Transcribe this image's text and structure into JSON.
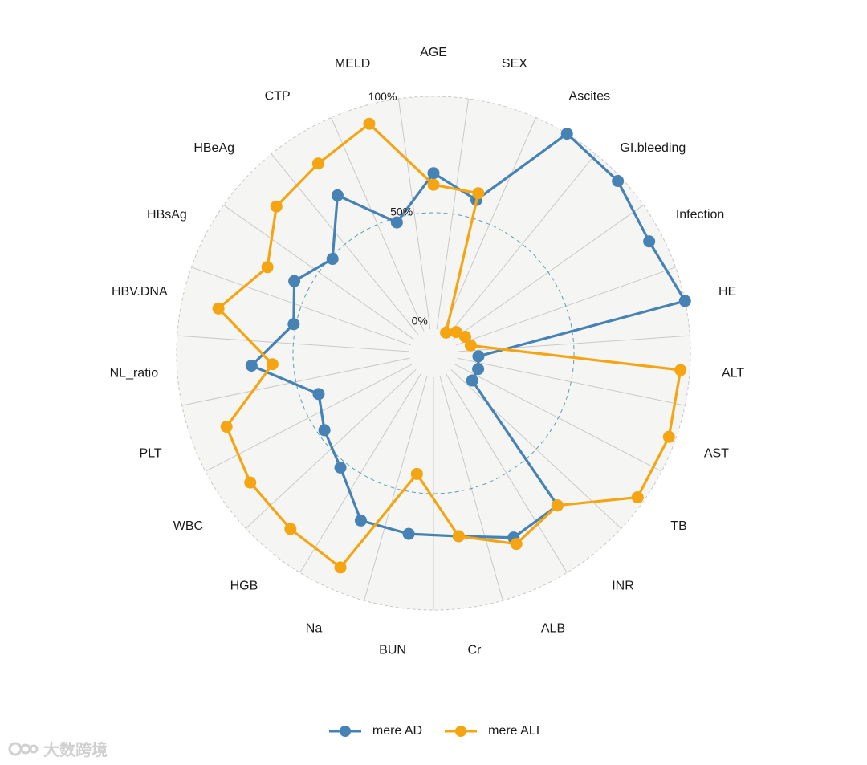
{
  "chart_data": {
    "type": "radar",
    "categories": [
      "AGE",
      "SEX",
      "Ascites",
      "GI.bleeding",
      "Infection",
      "HE",
      "ALT",
      "AST",
      "TB",
      "INR",
      "ALB",
      "Cr",
      "BUN",
      "Na",
      "HGB",
      "WBC",
      "PLT",
      "NL_ratio",
      "HBV.DNA",
      "HBsAg",
      "HBeAg",
      "CTP",
      "MELD"
    ],
    "series": [
      {
        "name": "mere AD",
        "color": "#4682B4",
        "values": [
          67,
          58,
          100,
          98,
          94,
          100,
          9,
          10,
          10,
          74,
          76,
          69,
          68,
          68,
          53,
          47,
          42,
          68,
          51,
          57,
          49,
          69,
          48
        ]
      },
      {
        "name": "mere ALI",
        "color": "#F5A512",
        "values": [
          62,
          61,
          0,
          3,
          5,
          6,
          96,
          97,
          97,
          74,
          79,
          69,
          42,
          90,
          87,
          86,
          84,
          59,
          84,
          70,
          82,
          85,
          92
        ]
      }
    ],
    "radial_ticks": [
      "0%",
      "50%",
      "100%"
    ],
    "ylim": [
      0,
      100
    ],
    "grid": true,
    "legend_position": "bottom"
  },
  "legend": {
    "items": [
      "mere AD",
      "mere ALI"
    ]
  },
  "watermark": {
    "text": "大数跨境",
    "icon": "logo-icon"
  }
}
